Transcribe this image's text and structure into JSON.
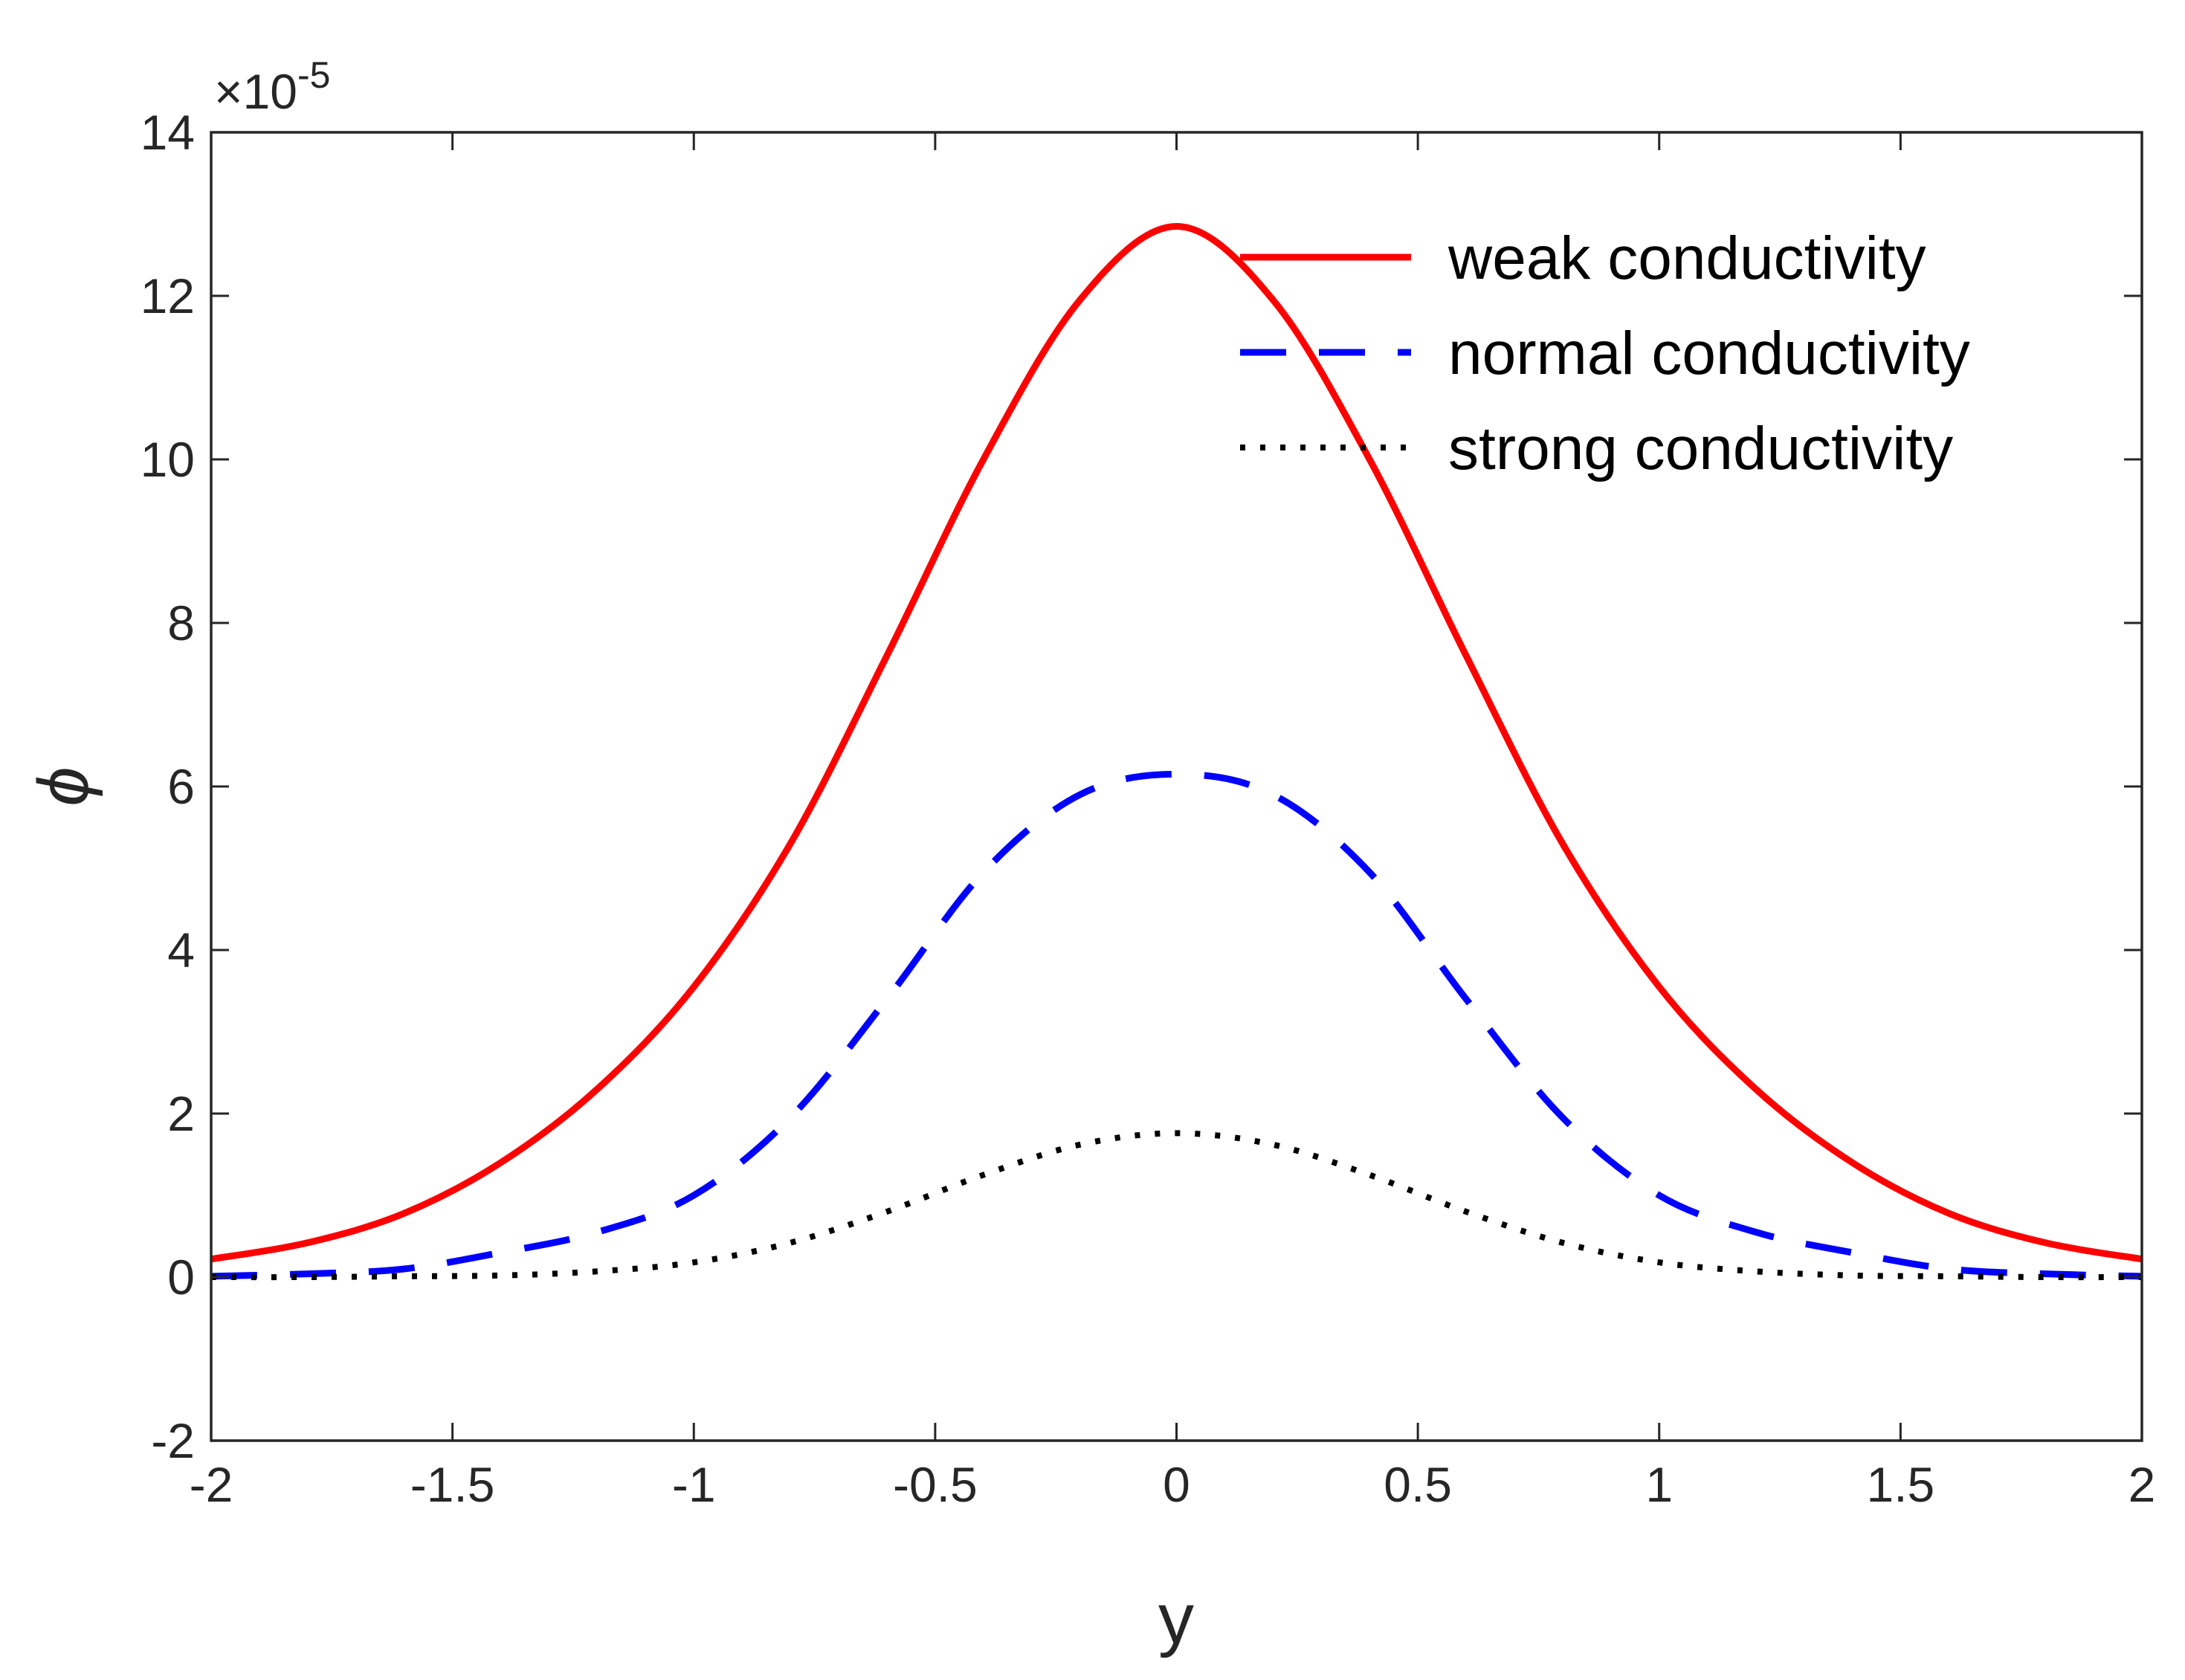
{
  "chart_data": {
    "type": "line",
    "title": "",
    "xlabel": "y",
    "ylabel": "ϕ",
    "y_exponent_label": "×10",
    "y_exponent_power": "-5",
    "xlim": [
      -2,
      2
    ],
    "ylim": [
      -2,
      14
    ],
    "xticks": [
      -2,
      -1.5,
      -1,
      -0.5,
      0,
      0.5,
      1,
      1.5,
      2
    ],
    "xtick_labels": [
      "-2",
      "-1.5",
      "-1",
      "-0.5",
      "0",
      "0.5",
      "1",
      "1.5",
      "2"
    ],
    "yticks": [
      -2,
      0,
      2,
      4,
      6,
      8,
      10,
      12,
      14
    ],
    "ytick_labels": [
      "-2",
      "0",
      "2",
      "4",
      "6",
      "8",
      "10",
      "12",
      "14"
    ],
    "grid": false,
    "legend_position": "top-right",
    "x": [
      -2.0,
      -1.8,
      -1.6,
      -1.4,
      -1.2,
      -1.0,
      -0.8,
      -0.6,
      -0.4,
      -0.2,
      0.0,
      0.2,
      0.4,
      0.6,
      0.8,
      1.0,
      1.2,
      1.4,
      1.6,
      1.8,
      2.0
    ],
    "series": [
      {
        "name": "weak conductivity",
        "color": "#ff0000",
        "style": "solid",
        "values": [
          0.22,
          0.42,
          0.78,
          1.4,
          2.3,
          3.55,
          5.3,
          7.6,
          10.0,
          11.95,
          12.85,
          11.95,
          10.0,
          7.6,
          5.3,
          3.55,
          2.3,
          1.4,
          0.78,
          0.42,
          0.22
        ]
      },
      {
        "name": "normal conductivity",
        "color": "#0000ff",
        "style": "dashed",
        "values": [
          0.01,
          0.04,
          0.1,
          0.3,
          0.55,
          1.0,
          1.95,
          3.4,
          4.95,
          5.9,
          6.15,
          5.9,
          4.95,
          3.4,
          1.95,
          1.0,
          0.55,
          0.3,
          0.1,
          0.04,
          0.01
        ]
      },
      {
        "name": "strong conductivity",
        "color": "#000000",
        "style": "dotted",
        "values": [
          0.0,
          0.0,
          0.01,
          0.02,
          0.07,
          0.18,
          0.42,
          0.8,
          1.25,
          1.62,
          1.76,
          1.62,
          1.25,
          0.8,
          0.42,
          0.18,
          0.07,
          0.02,
          0.01,
          0.0,
          0.0
        ]
      }
    ]
  }
}
